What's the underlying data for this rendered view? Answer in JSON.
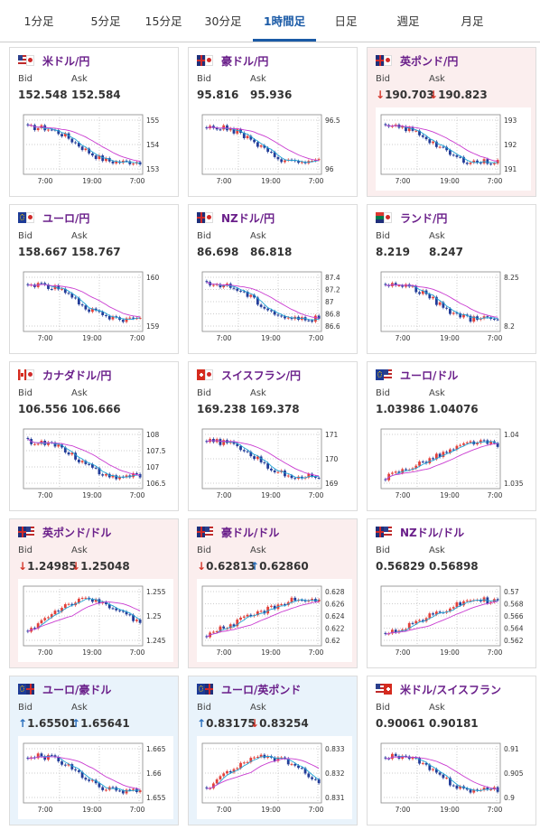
{
  "tabs": [
    "1分足",
    "5分足",
    "15分足",
    "30分足",
    "1時間足",
    "日足",
    "週足",
    "月足"
  ],
  "active_tab": 4,
  "labels": {
    "bid": "Bid",
    "ask": "Ask"
  },
  "colors": {
    "up_arrow": "#2a6fbd",
    "down_arrow": "#d4372b",
    "candle_up": "#e2403a",
    "candle_down": "#233d99",
    "ma_short": "#1fa3d4",
    "ma_long": "#c93ad0"
  },
  "cards": [
    {
      "pair": "米ドル/円",
      "flag": "us-jp-flag",
      "bid": "152.548",
      "ask": "152.584",
      "bid_dir": "",
      "ask_dir": "",
      "bg": "white",
      "ticks": [
        "155",
        "154",
        "153"
      ],
      "xlabels": [
        "7:00",
        "19:00",
        "7:00"
      ]
    },
    {
      "pair": "豪ドル/円",
      "flag": "au-jp-flag",
      "bid": "95.816",
      "ask": "95.936",
      "bid_dir": "",
      "ask_dir": "",
      "bg": "white",
      "ticks": [
        "96.5",
        "96"
      ],
      "xlabels": [
        "7:00",
        "19:00",
        "7:00"
      ]
    },
    {
      "pair": "英ポンド/円",
      "flag": "gb-jp-flag",
      "bid": "190.703",
      "ask": "190.823",
      "bid_dir": "down",
      "ask_dir": "down",
      "bg": "pink",
      "ticks": [
        "193",
        "192",
        "191"
      ],
      "xlabels": [
        "7:00",
        "19:00",
        "7:00"
      ]
    },
    {
      "pair": "ユーロ/円",
      "flag": "eu-jp-flag",
      "bid": "158.667",
      "ask": "158.767",
      "bid_dir": "",
      "ask_dir": "",
      "bg": "white",
      "ticks": [
        "160",
        "159"
      ],
      "xlabels": [
        "7:00",
        "19:00",
        "7:00"
      ]
    },
    {
      "pair": "NZドル/円",
      "flag": "nz-jp-flag",
      "bid": "86.698",
      "ask": "86.818",
      "bid_dir": "",
      "ask_dir": "",
      "bg": "white",
      "ticks": [
        "87.4",
        "87.2",
        "87",
        "86.8",
        "86.6"
      ],
      "xlabels": [
        "7:00",
        "19:00",
        "7:00"
      ]
    },
    {
      "pair": "ランド/円",
      "flag": "za-jp-flag",
      "bid": "8.219",
      "ask": "8.247",
      "bid_dir": "",
      "ask_dir": "",
      "bg": "white",
      "ticks": [
        "8.25",
        "8.2"
      ],
      "xlabels": [
        "7:00",
        "19:00",
        "7:00"
      ]
    },
    {
      "pair": "カナダドル/円",
      "flag": "ca-jp-flag",
      "bid": "106.556",
      "ask": "106.666",
      "bid_dir": "",
      "ask_dir": "",
      "bg": "white",
      "ticks": [
        "108",
        "107.5",
        "107",
        "106.5"
      ],
      "xlabels": [
        "7:00",
        "19:00",
        "7:00"
      ]
    },
    {
      "pair": "スイスフラン/円",
      "flag": "ch-jp-flag",
      "bid": "169.238",
      "ask": "169.378",
      "bid_dir": "",
      "ask_dir": "",
      "bg": "white",
      "ticks": [
        "171",
        "170",
        "169"
      ],
      "xlabels": [
        "7:00",
        "19:00",
        "7:00"
      ]
    },
    {
      "pair": "ユーロ/ドル",
      "flag": "eu-us-flag",
      "bid": "1.03986",
      "ask": "1.04076",
      "bid_dir": "",
      "ask_dir": "",
      "bg": "white",
      "ticks": [
        "1.04",
        "1.035"
      ],
      "xlabels": [
        "7:00",
        "19:00",
        "7:00"
      ]
    },
    {
      "pair": "英ポンド/ドル",
      "flag": "gb-us-flag",
      "bid": "1.24985",
      "ask": "1.25048",
      "bid_dir": "down",
      "ask_dir": "down",
      "bg": "pink",
      "ticks": [
        "1.255",
        "1.25",
        "1.245"
      ],
      "xlabels": [
        "7:00",
        "19:00",
        "7:00"
      ]
    },
    {
      "pair": "豪ドル/ドル",
      "flag": "au-us-flag",
      "bid": "0.62813",
      "ask": "0.62860",
      "bid_dir": "down",
      "ask_dir": "up",
      "bg": "pink",
      "ticks": [
        "0.628",
        "0.626",
        "0.624",
        "0.622",
        "0.62"
      ],
      "xlabels": [
        "7:00",
        "19:00",
        "7:00"
      ]
    },
    {
      "pair": "NZドル/ドル",
      "flag": "nz-us-flag",
      "bid": "0.56829",
      "ask": "0.56898",
      "bid_dir": "",
      "ask_dir": "",
      "bg": "white",
      "ticks": [
        "0.57",
        "0.568",
        "0.566",
        "0.564",
        "0.562"
      ],
      "xlabels": [
        "7:00",
        "19:00",
        "7:00"
      ]
    },
    {
      "pair": "ユーロ/豪ドル",
      "flag": "eu-au-flag",
      "bid": "1.65501",
      "ask": "1.65641",
      "bid_dir": "up",
      "ask_dir": "up",
      "bg": "blue",
      "ticks": [
        "1.665",
        "1.66",
        "1.655"
      ],
      "xlabels": [
        "7:00",
        "19:00",
        "7:00"
      ]
    },
    {
      "pair": "ユーロ/英ポンド",
      "flag": "eu-gb-flag",
      "bid": "0.83175",
      "ask": "0.83254",
      "bid_dir": "up",
      "ask_dir": "down",
      "bg": "blue",
      "ticks": [
        "0.833",
        "0.832",
        "0.831"
      ],
      "xlabels": [
        "7:00",
        "19:00",
        "7:00"
      ]
    },
    {
      "pair": "米ドル/スイスフラン",
      "flag": "us-ch-flag",
      "bid": "0.90061",
      "ask": "0.90181",
      "bid_dir": "",
      "ask_dir": "",
      "bg": "white",
      "ticks": [
        "0.91",
        "0.905",
        "0.9"
      ],
      "xlabels": [
        "7:00",
        "19:00",
        "7:00"
      ]
    }
  ]
}
